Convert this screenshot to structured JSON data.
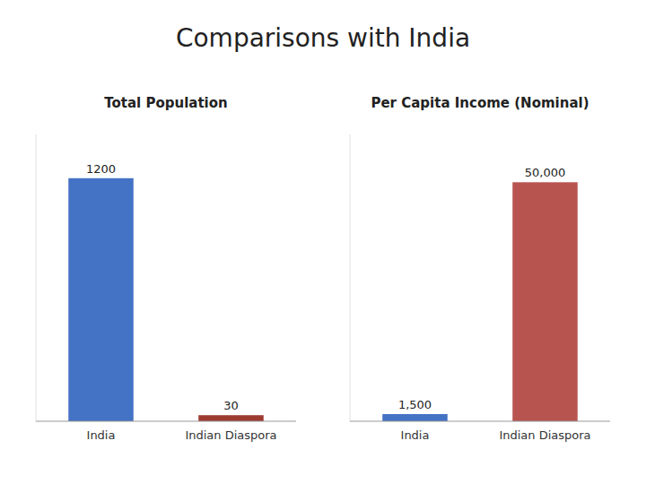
{
  "title": "Comparisons with India",
  "chart_data": [
    {
      "type": "bar",
      "title": "Total Population",
      "categories": [
        "India",
        "Indian Diaspora"
      ],
      "values": [
        1200,
        30
      ],
      "colors": [
        "#4472C4",
        "#9E3B30"
      ],
      "ylim": [
        0,
        1416
      ],
      "data_labels": true,
      "tick_labels": "x",
      "grid": false
    },
    {
      "type": "bar",
      "title": "Per Capita Income (Nominal)",
      "categories": [
        "India",
        "Indian Diaspora"
      ],
      "values": [
        1500,
        50000
      ],
      "value_labels": [
        "1,500",
        "50,000"
      ],
      "colors": [
        "#4472C4",
        "#B85450"
      ],
      "ylim": [
        0,
        60000
      ],
      "data_labels": true,
      "tick_labels": "x",
      "grid": false
    }
  ]
}
